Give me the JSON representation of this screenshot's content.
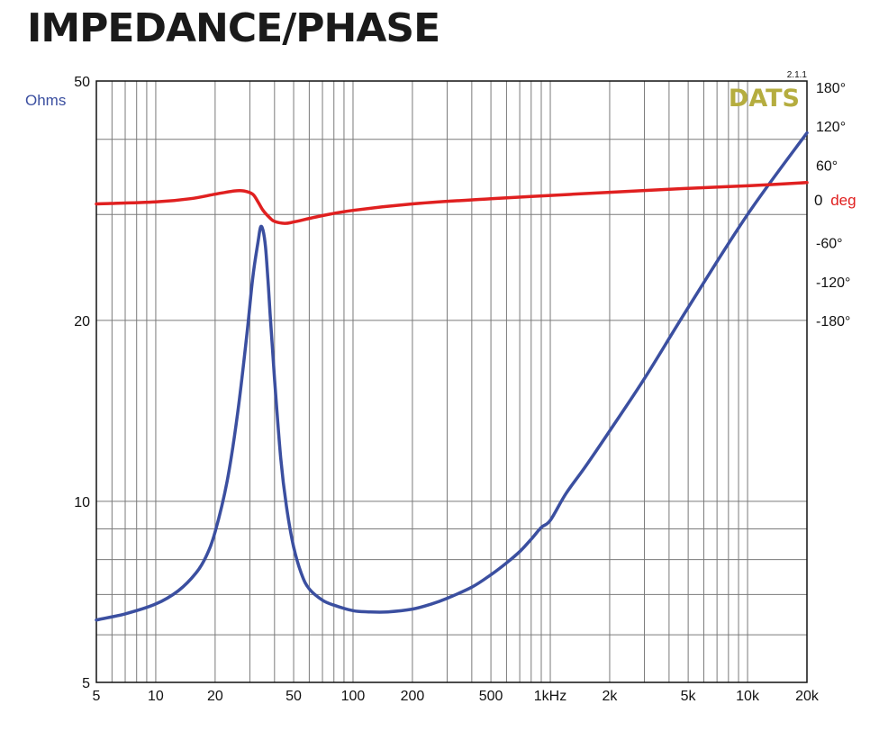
{
  "title": "IMPEDANCE/PHASE",
  "chart_data": {
    "type": "line",
    "title": "IMPEDANCE/PHASE",
    "xscale": "log",
    "yscale_left": "log",
    "xlim": [
      5,
      20000
    ],
    "ylim_left": [
      5,
      50
    ],
    "ylim_right": [
      -180,
      180
    ],
    "grid": true,
    "left_axis_label": "Ohms",
    "right_axis_label": {
      "zero": "0",
      "unit": "deg"
    },
    "x_ticks": [
      {
        "value": 5,
        "label": "5"
      },
      {
        "value": 10,
        "label": "10"
      },
      {
        "value": 20,
        "label": "20"
      },
      {
        "value": 50,
        "label": "50"
      },
      {
        "value": 100,
        "label": "100"
      },
      {
        "value": 200,
        "label": "200"
      },
      {
        "value": 500,
        "label": "500"
      },
      {
        "value": 1000,
        "label": "1kHz"
      },
      {
        "value": 2000,
        "label": "2k"
      },
      {
        "value": 5000,
        "label": "5k"
      },
      {
        "value": 10000,
        "label": "10k"
      },
      {
        "value": 20000,
        "label": "20k"
      }
    ],
    "y_left_ticks": [
      {
        "value": 5,
        "label": "5"
      },
      {
        "value": 10,
        "label": "10"
      },
      {
        "value": 20,
        "label": "20"
      },
      {
        "value": 50,
        "label": "50"
      }
    ],
    "y_right_ticks": [
      {
        "value": 180,
        "label": "180°"
      },
      {
        "value": 120,
        "label": "120°"
      },
      {
        "value": 60,
        "label": "60°"
      },
      {
        "value": -60,
        "label": "-60°"
      },
      {
        "value": -120,
        "label": "-120°"
      },
      {
        "value": -180,
        "label": "-180°"
      }
    ],
    "series": [
      {
        "name": "impedance",
        "axis": "left",
        "color": "#3b4fa0",
        "x": [
          5,
          7,
          10,
          13,
          16,
          18,
          20,
          23,
          26,
          29,
          31,
          33,
          34,
          35,
          36,
          37,
          38,
          40,
          43,
          46,
          50,
          55,
          60,
          70,
          80,
          100,
          120,
          150,
          200,
          250,
          300,
          400,
          500,
          600,
          700,
          800,
          900,
          1000,
          1200,
          1500,
          2000,
          3000,
          5000,
          10000,
          20000
        ],
        "y": [
          6.35,
          6.5,
          6.75,
          7.1,
          7.6,
          8.1,
          8.9,
          10.8,
          14.0,
          19.0,
          23.5,
          27.0,
          28.6,
          28.2,
          26.5,
          23.5,
          20.5,
          16.0,
          11.8,
          9.8,
          8.4,
          7.55,
          7.15,
          6.85,
          6.72,
          6.58,
          6.55,
          6.55,
          6.62,
          6.75,
          6.9,
          7.2,
          7.55,
          7.9,
          8.25,
          8.65,
          9.05,
          9.3,
          10.3,
          11.4,
          13.1,
          16.0,
          21.0,
          30.0,
          41.0
        ]
      },
      {
        "name": "phase",
        "axis": "right",
        "color": "#e02020",
        "x": [
          5,
          10,
          15,
          20,
          25,
          28,
          31,
          33,
          35,
          38,
          40,
          45,
          50,
          70,
          100,
          200,
          500,
          1000,
          2000,
          5000,
          10000,
          20000
        ],
        "y": [
          0,
          3,
          8,
          15,
          20,
          20,
          15,
          3,
          -10,
          -22,
          -27,
          -30,
          -28,
          -18,
          -10,
          0,
          8,
          13,
          18,
          24,
          28,
          33
        ]
      }
    ],
    "annotations": [
      {
        "text": "DATS",
        "color": "#b5ad3f"
      },
      {
        "text": "2.1.1"
      }
    ]
  }
}
